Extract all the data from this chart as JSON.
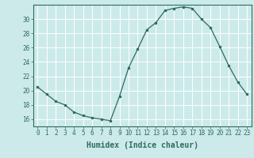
{
  "x": [
    0,
    1,
    2,
    3,
    4,
    5,
    6,
    7,
    8,
    9,
    10,
    11,
    12,
    13,
    14,
    15,
    16,
    17,
    18,
    19,
    20,
    21,
    22,
    23
  ],
  "y": [
    20.5,
    19.5,
    18.5,
    18.0,
    17.0,
    16.5,
    16.2,
    16.0,
    15.8,
    19.2,
    23.2,
    25.8,
    28.5,
    29.5,
    31.2,
    31.5,
    31.7,
    31.5,
    30.0,
    28.8,
    26.2,
    23.5,
    21.2,
    19.5
  ],
  "line_color": "#2e6b5e",
  "marker_color": "#2e6b5e",
  "bg_color": "#cceaea",
  "grid_color": "#ffffff",
  "axis_color": "#2e6b5e",
  "tick_label_color": "#2e6b5e",
  "xlabel": "Humidex (Indice chaleur)",
  "ylim": [
    15.0,
    32.0
  ],
  "xlim": [
    -0.5,
    23.5
  ],
  "yticks": [
    16,
    18,
    20,
    22,
    24,
    26,
    28,
    30
  ],
  "xticks": [
    0,
    1,
    2,
    3,
    4,
    5,
    6,
    7,
    8,
    9,
    10,
    11,
    12,
    13,
    14,
    15,
    16,
    17,
    18,
    19,
    20,
    21,
    22,
    23
  ],
  "tick_fontsize": 5.5,
  "label_fontsize": 7.0
}
